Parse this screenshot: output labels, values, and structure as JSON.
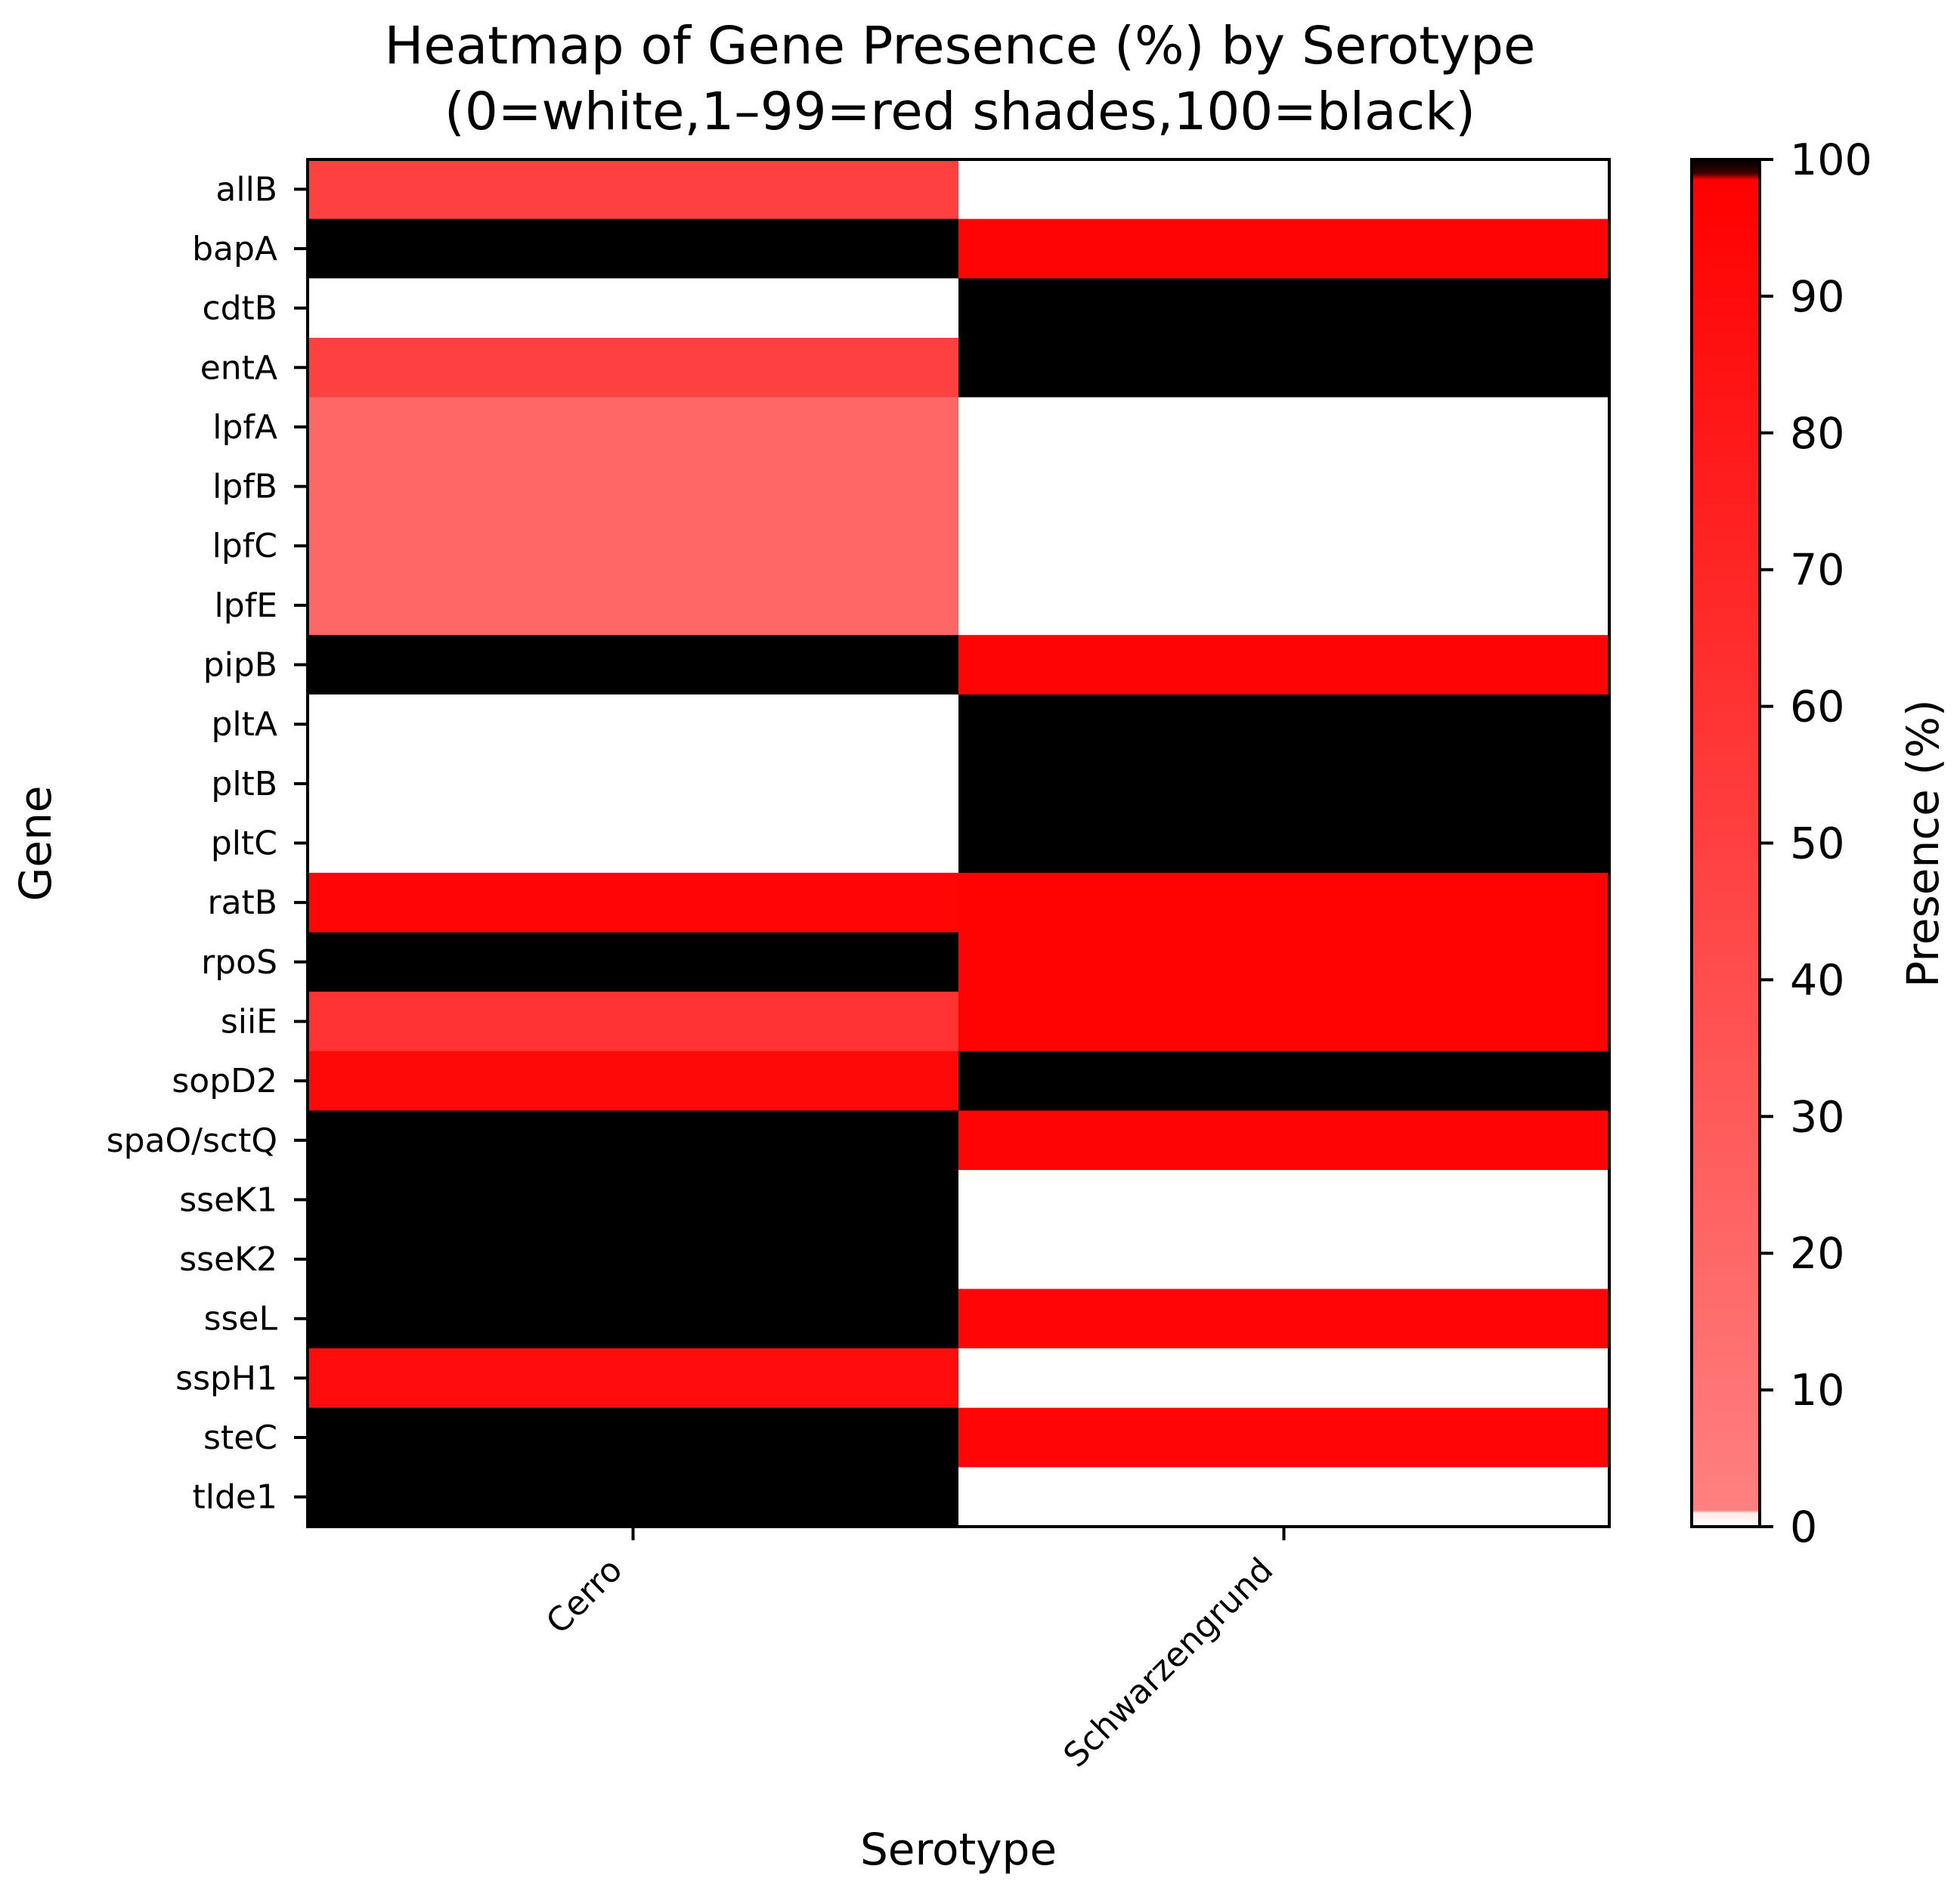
{
  "chart_data": {
    "type": "heatmap",
    "title_line1": "Heatmap of Gene Presence (%) by Serotype",
    "title_line2": "(0=white,1–99=red shades,100=black)",
    "xlabel": "Serotype",
    "ylabel": "Gene",
    "colorbar_label": "Presence (%)",
    "colorbar_range": [
      0,
      100
    ],
    "colorbar_ticks": [
      0,
      10,
      20,
      30,
      40,
      50,
      60,
      70,
      80,
      90,
      100
    ],
    "x_categories": [
      "Cerro",
      "Schwarzengrund"
    ],
    "y_categories": [
      "allB",
      "bapA",
      "cdtB",
      "entA",
      "lpfA",
      "lpfB",
      "lpfC",
      "lpfE",
      "pipB",
      "pltA",
      "pltB",
      "pltC",
      "ratB",
      "rpoS",
      "siiE",
      "sopD2",
      "spaO/sctQ",
      "sseK1",
      "sseK2",
      "sseL",
      "sspH1",
      "steC",
      "tlde1"
    ],
    "values": [
      [
        50,
        0
      ],
      [
        100,
        96
      ],
      [
        0,
        100
      ],
      [
        50,
        100
      ],
      [
        20,
        0
      ],
      [
        20,
        0
      ],
      [
        20,
        0
      ],
      [
        20,
        0
      ],
      [
        100,
        96
      ],
      [
        0,
        100
      ],
      [
        0,
        100
      ],
      [
        0,
        100
      ],
      [
        95,
        97
      ],
      [
        100,
        97
      ],
      [
        60,
        97
      ],
      [
        93,
        100
      ],
      [
        100,
        96
      ],
      [
        100,
        0
      ],
      [
        100,
        0
      ],
      [
        100,
        95
      ],
      [
        90,
        0
      ],
      [
        100,
        95
      ],
      [
        100,
        0
      ]
    ],
    "colors": {
      "zero": "#ffffff",
      "full": "#000000",
      "red_light": "#ff8080",
      "red_full": "#ff0000"
    },
    "grid": false
  }
}
